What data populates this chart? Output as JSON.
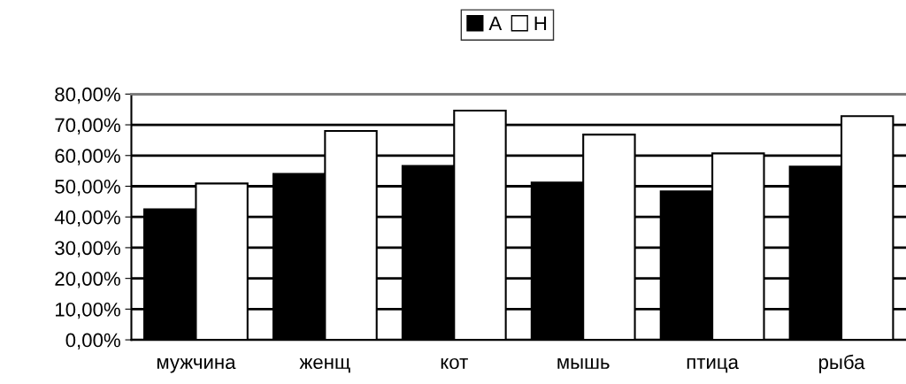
{
  "chart_data": {
    "type": "bar",
    "categories": [
      "мужчина",
      "женщ",
      "кот",
      "мышь",
      "птица",
      "рыба"
    ],
    "series": [
      {
        "name": "А",
        "color": "#000000",
        "values": [
          42.5,
          54,
          56.6,
          51.2,
          48.3,
          56.4
        ]
      },
      {
        "name": "Н",
        "color": "#ffffff",
        "values": [
          50.9,
          68,
          74.6,
          66.8,
          60.7,
          72.8
        ]
      }
    ],
    "ylim": [
      0,
      80
    ],
    "yticks": [
      {
        "value": 0,
        "label": "0,00%"
      },
      {
        "value": 10,
        "label": "10,00%"
      },
      {
        "value": 20,
        "label": "20,00%"
      },
      {
        "value": 30,
        "label": "30,00%"
      },
      {
        "value": 40,
        "label": "40,00%"
      },
      {
        "value": 50,
        "label": "50,00%"
      },
      {
        "value": 60,
        "label": "60,00%"
      },
      {
        "value": 70,
        "label": "70,00%"
      },
      {
        "value": 80,
        "label": "80,00%"
      }
    ],
    "grid": "y",
    "legend": "top"
  }
}
